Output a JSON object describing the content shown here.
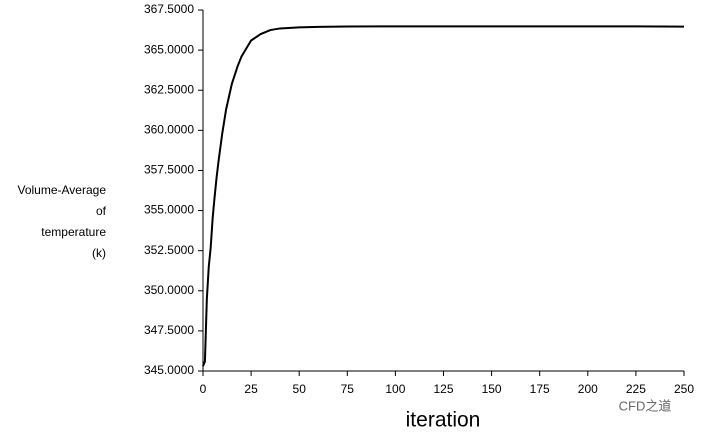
{
  "chart_data": {
    "type": "line",
    "ylabel": [
      "Volume-Average",
      "of",
      "temperature",
      "(k)"
    ],
    "xlabel": "iteration",
    "watermark": "CFD之道",
    "x": [
      0,
      1,
      2,
      3,
      4,
      5,
      6,
      7,
      8,
      10,
      12,
      15,
      18,
      20,
      25,
      30,
      35,
      40,
      50,
      60,
      75,
      100,
      125,
      150,
      175,
      200,
      225,
      250
    ],
    "values": [
      345.3,
      345.6,
      349.5,
      351.5,
      352.7,
      354.5,
      355.8,
      357.0,
      358.0,
      359.8,
      361.3,
      362.9,
      364.0,
      364.6,
      365.6,
      366.0,
      366.25,
      366.35,
      366.42,
      366.45,
      366.47,
      366.48,
      366.48,
      366.48,
      366.48,
      366.48,
      366.48,
      366.46
    ],
    "color": "#000000",
    "xlim": [
      0,
      250
    ],
    "xticks": [
      0,
      25,
      50,
      75,
      100,
      125,
      150,
      175,
      200,
      225,
      250
    ],
    "ylim": [
      345,
      367.5
    ],
    "yticks": [
      {
        "value": 345,
        "label": "345.0000"
      },
      {
        "value": 347.5,
        "label": "347.5000"
      },
      {
        "value": 350,
        "label": "350.0000"
      },
      {
        "value": 352.5,
        "label": "352.5000"
      },
      {
        "value": 355,
        "label": "355.0000"
      },
      {
        "value": 357.5,
        "label": "357.5000"
      },
      {
        "value": 360,
        "label": "360.0000"
      },
      {
        "value": 362.5,
        "label": "362.5000"
      },
      {
        "value": 365,
        "label": "365.0000"
      },
      {
        "value": 367.5,
        "label": "367.5000"
      }
    ],
    "grid": false
  }
}
